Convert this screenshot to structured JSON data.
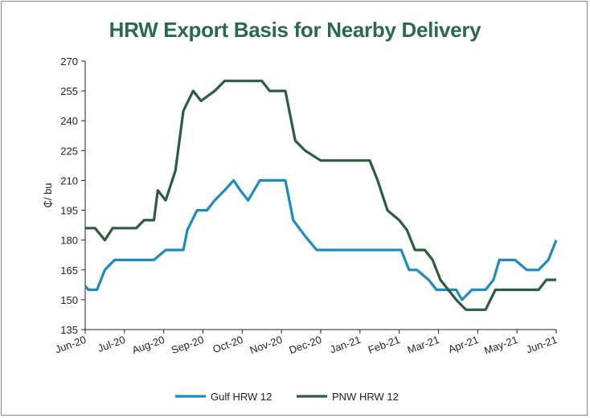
{
  "chart_data": {
    "type": "line",
    "title": "HRW Export Basis for Nearby Delivery",
    "xlabel": "",
    "ylabel": "₵/ bu",
    "ylim": [
      135,
      270
    ],
    "yticks": [
      135,
      150,
      165,
      180,
      195,
      210,
      225,
      240,
      255,
      270
    ],
    "xticks": [
      "Jun-20",
      "Jul-20",
      "Aug-20",
      "Sep-20",
      "Oct-20",
      "Nov-20",
      "Dec-20",
      "Jan-21",
      "Feb-21",
      "Mar-21",
      "Apr-21",
      "May-21",
      "Jun-21"
    ],
    "xlim": [
      0,
      12
    ],
    "legend_position": "bottom",
    "grid": false,
    "series": [
      {
        "name": "Gulf HRW 12",
        "color": "#1f8ac0",
        "points": [
          [
            0,
            157
          ],
          [
            0.08,
            155
          ],
          [
            0.3,
            155
          ],
          [
            0.5,
            165
          ],
          [
            0.75,
            170
          ],
          [
            1,
            170
          ],
          [
            1.4,
            170
          ],
          [
            1.75,
            170
          ],
          [
            2.05,
            175
          ],
          [
            2.5,
            175
          ],
          [
            2.6,
            185
          ],
          [
            2.85,
            195
          ],
          [
            3.1,
            195
          ],
          [
            3.3,
            200
          ],
          [
            3.55,
            205
          ],
          [
            3.78,
            210
          ],
          [
            3.95,
            205
          ],
          [
            4.15,
            200
          ],
          [
            4.45,
            210
          ],
          [
            4.7,
            210
          ],
          [
            5.1,
            210
          ],
          [
            5.3,
            190
          ],
          [
            5.6,
            182
          ],
          [
            5.9,
            175
          ],
          [
            6.2,
            175
          ],
          [
            6.5,
            175
          ],
          [
            7,
            175
          ],
          [
            7.4,
            175
          ],
          [
            7.8,
            175
          ],
          [
            8.05,
            175
          ],
          [
            8.25,
            165
          ],
          [
            8.45,
            165
          ],
          [
            8.75,
            160
          ],
          [
            8.95,
            155
          ],
          [
            9.2,
            155
          ],
          [
            9.45,
            155
          ],
          [
            9.6,
            150
          ],
          [
            9.85,
            155
          ],
          [
            10.2,
            155
          ],
          [
            10.4,
            160
          ],
          [
            10.55,
            170
          ],
          [
            10.95,
            170
          ],
          [
            11.25,
            165
          ],
          [
            11.55,
            165
          ],
          [
            11.8,
            170
          ],
          [
            12,
            180
          ]
        ]
      },
      {
        "name": "PNW HRW 12",
        "color": "#2a5e3c",
        "points": [
          [
            0,
            186
          ],
          [
            0.25,
            186
          ],
          [
            0.5,
            180
          ],
          [
            0.7,
            186
          ],
          [
            1,
            186
          ],
          [
            1.3,
            186
          ],
          [
            1.5,
            190
          ],
          [
            1.75,
            190
          ],
          [
            1.85,
            205
          ],
          [
            2.05,
            200
          ],
          [
            2.3,
            215
          ],
          [
            2.5,
            245
          ],
          [
            2.75,
            255
          ],
          [
            2.95,
            250
          ],
          [
            3.3,
            255
          ],
          [
            3.55,
            260
          ],
          [
            4.0,
            260
          ],
          [
            4.5,
            260
          ],
          [
            4.7,
            255
          ],
          [
            5.1,
            255
          ],
          [
            5.35,
            230
          ],
          [
            5.6,
            225
          ],
          [
            6.0,
            220
          ],
          [
            6.5,
            220
          ],
          [
            7.0,
            220
          ],
          [
            7.25,
            220
          ],
          [
            7.45,
            210
          ],
          [
            7.7,
            195
          ],
          [
            8.0,
            190
          ],
          [
            8.2,
            185
          ],
          [
            8.4,
            175
          ],
          [
            8.65,
            175
          ],
          [
            8.85,
            170
          ],
          [
            9.05,
            160
          ],
          [
            9.25,
            155
          ],
          [
            9.45,
            150
          ],
          [
            9.7,
            145
          ],
          [
            10.2,
            145
          ],
          [
            10.45,
            155
          ],
          [
            10.9,
            155
          ],
          [
            11.25,
            155
          ],
          [
            11.55,
            155
          ],
          [
            11.75,
            160
          ],
          [
            12,
            160
          ]
        ]
      }
    ]
  }
}
